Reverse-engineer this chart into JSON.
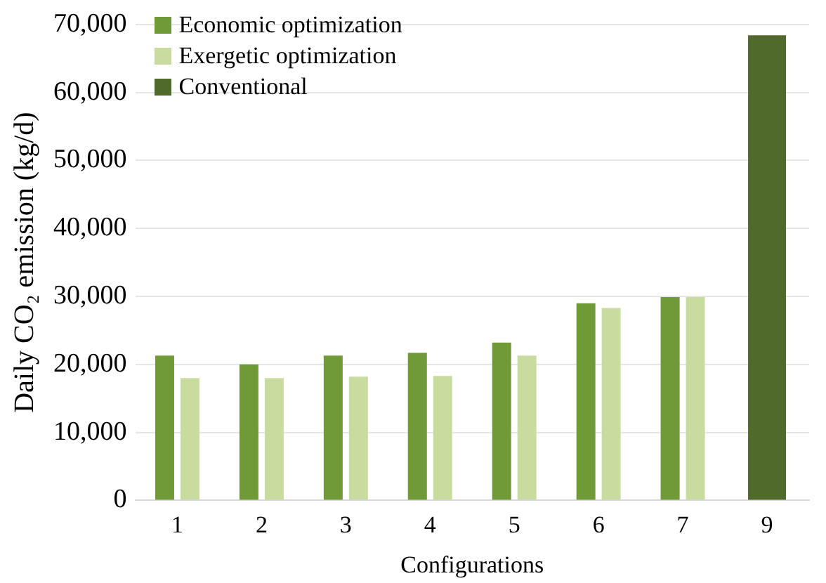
{
  "chart_data": {
    "type": "bar",
    "xlabel": "Configurations",
    "ylabel": "Daily CO₂ emission (kg/d)",
    "categories": [
      "1",
      "2",
      "3",
      "4",
      "5",
      "6",
      "7",
      "9"
    ],
    "series": [
      {
        "name": "Economic optimization",
        "color": "#6f9a37",
        "values": [
          21300,
          20000,
          21300,
          21700,
          23200,
          29000,
          29900,
          null
        ]
      },
      {
        "name": "Exergetic optimization",
        "color": "#c9dc9f",
        "values": [
          18000,
          18000,
          18200,
          18300,
          21300,
          28300,
          29900,
          null
        ]
      },
      {
        "name": "Conventional",
        "color": "#4f6a2b",
        "values": [
          null,
          null,
          null,
          null,
          null,
          null,
          null,
          68400
        ]
      }
    ],
    "ylim": [
      0,
      70000
    ],
    "yticks": [
      {
        "value": 0,
        "label": "0"
      },
      {
        "value": 10000,
        "label": "10,000"
      },
      {
        "value": 20000,
        "label": "20,000"
      },
      {
        "value": 30000,
        "label": "30,000"
      },
      {
        "value": 40000,
        "label": "40,000"
      },
      {
        "value": 50000,
        "label": "50,000"
      },
      {
        "value": 60000,
        "label": "60,000"
      },
      {
        "value": 70000,
        "label": "70,000"
      }
    ],
    "grid": "y",
    "legend": "top left"
  }
}
